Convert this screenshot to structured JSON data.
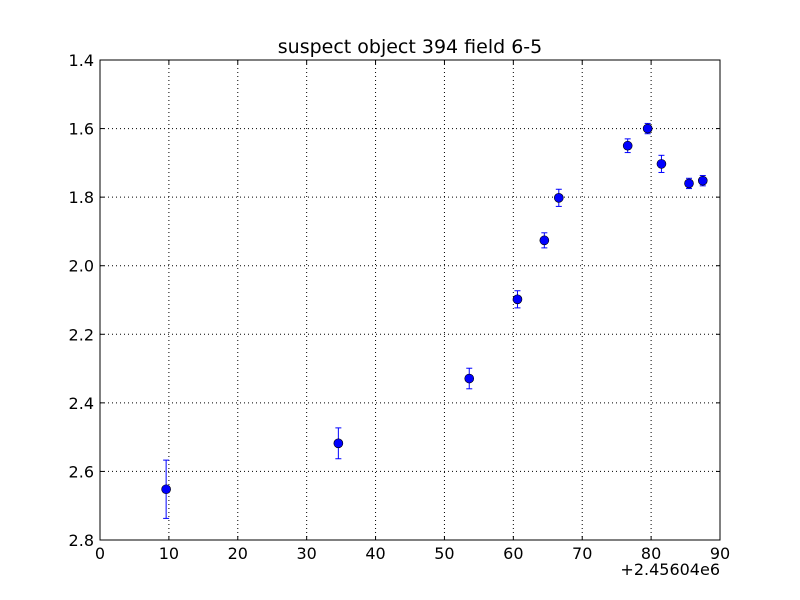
{
  "chart_data": {
    "type": "scatter",
    "title": "suspect object 394 field 6-5",
    "xlabel": "",
    "ylabel": "",
    "x_offset_label": "+2.45604e6",
    "xlim": [
      0,
      90
    ],
    "ylim": [
      2.8,
      1.4
    ],
    "y_inverted": true,
    "grid": true,
    "x_ticks": [
      0,
      10,
      20,
      30,
      40,
      50,
      60,
      70,
      80,
      90
    ],
    "x_tick_labels": [
      "0",
      "10",
      "20",
      "30",
      "40",
      "50",
      "60",
      "70",
      "80",
      "90"
    ],
    "y_ticks": [
      1.4,
      1.6,
      1.8,
      2.0,
      2.2,
      2.4,
      2.6,
      2.8
    ],
    "y_tick_labels": [
      "1.4",
      "1.6",
      "1.8",
      "2.0",
      "2.2",
      "2.4",
      "2.6",
      "2.8"
    ],
    "marker_color": "#0000ff",
    "points": [
      {
        "x": 9.6,
        "y": 2.652,
        "yerr": 0.085
      },
      {
        "x": 34.6,
        "y": 2.518,
        "yerr": 0.045
      },
      {
        "x": 53.6,
        "y": 2.329,
        "yerr": 0.03
      },
      {
        "x": 60.6,
        "y": 2.098,
        "yerr": 0.025
      },
      {
        "x": 64.5,
        "y": 1.926,
        "yerr": 0.022
      },
      {
        "x": 66.6,
        "y": 1.802,
        "yerr": 0.025
      },
      {
        "x": 76.6,
        "y": 1.65,
        "yerr": 0.02
      },
      {
        "x": 79.5,
        "y": 1.6,
        "yerr": 0.015
      },
      {
        "x": 81.5,
        "y": 1.703,
        "yerr": 0.025
      },
      {
        "x": 85.5,
        "y": 1.76,
        "yerr": 0.015
      },
      {
        "x": 87.5,
        "y": 1.752,
        "yerr": 0.015
      }
    ]
  }
}
